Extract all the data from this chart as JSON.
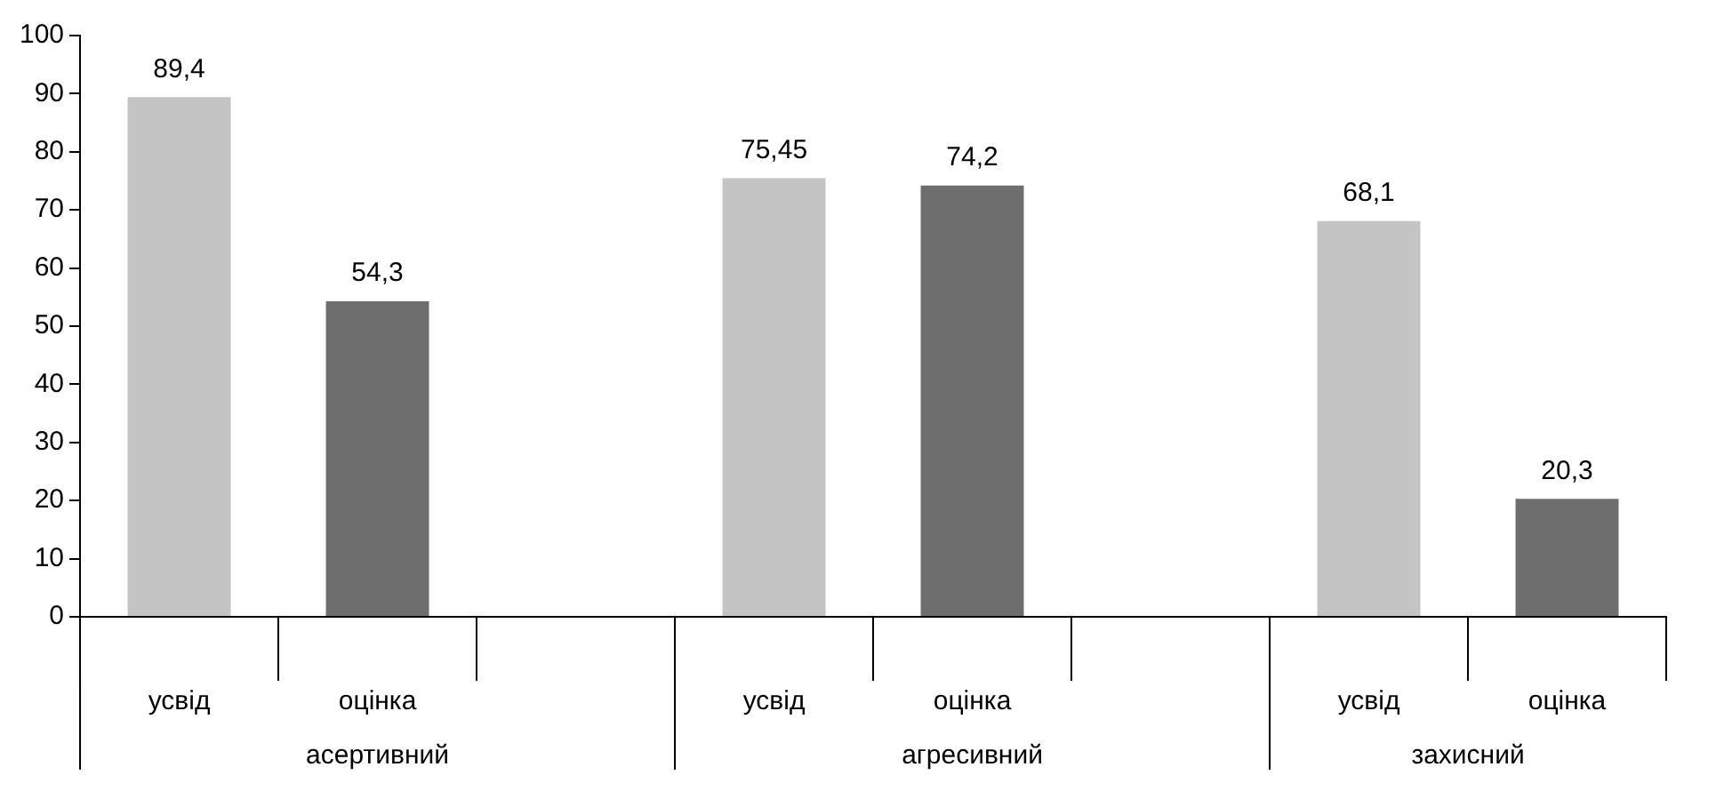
{
  "chart_data": {
    "type": "bar",
    "categories": [
      "усвід",
      "оцінка",
      null,
      "усвід",
      "оцінка",
      null,
      "усвід",
      "оцінка"
    ],
    "values": [
      89.4,
      54.3,
      null,
      75.45,
      74.2,
      null,
      68.1,
      20.3
    ],
    "colors": [
      "#c4c4c4",
      "#6e6e6e",
      "#ffffff",
      "#c4c4c4",
      "#6e6e6e",
      "#ffffff",
      "#c4c4c4",
      "#6e6e6e"
    ],
    "value_labels": [
      "89,4",
      "54,3",
      null,
      "75,45",
      "74,2",
      null,
      "68,1",
      "20,3"
    ],
    "ylim": [
      0,
      100
    ],
    "yticks": [
      0,
      10,
      20,
      30,
      40,
      50,
      60,
      70,
      80,
      90,
      100
    ],
    "annotations": [
      "асертивний",
      "агресивний",
      "захисний"
    ]
  }
}
